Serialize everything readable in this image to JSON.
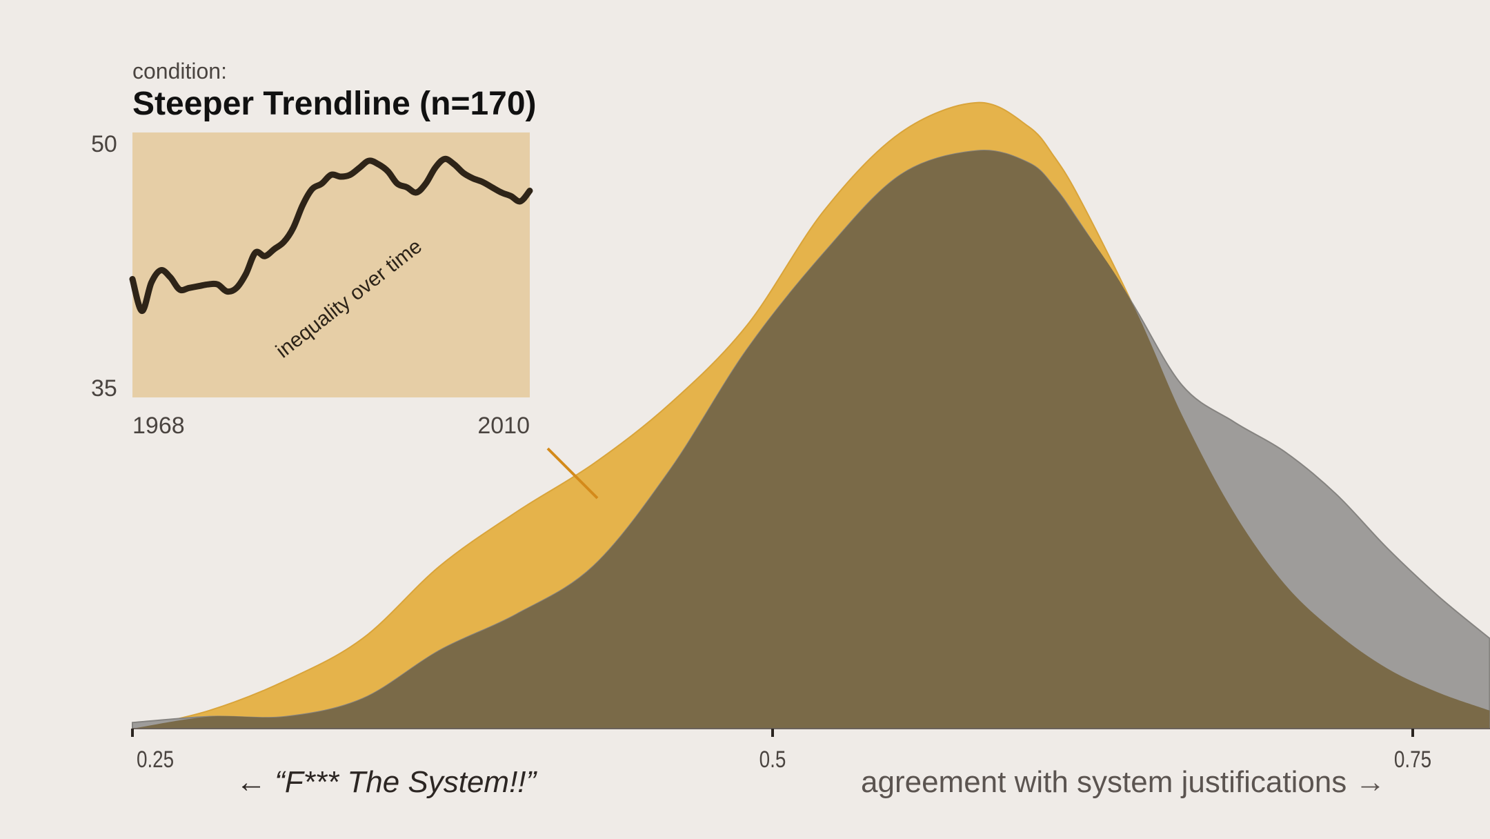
{
  "colors": {
    "background": "#efebe7",
    "condition_fill": "#e5b34b",
    "baseline_fill": "#9e9c9a",
    "overlap_fill": "#7a6a48",
    "inset_background": "#e6cea6",
    "inset_line": "#2e2418",
    "connector": "#d48a1a"
  },
  "header": {
    "condition_label": "condition:",
    "condition_title": "Steeper Trendline (n=170)"
  },
  "inset": {
    "type": "line",
    "annotation": "inequality over time",
    "x_tick_labels": [
      "1968",
      "2010"
    ],
    "y_tick_labels": [
      "50",
      "35"
    ],
    "xlim": [
      1968,
      2010
    ],
    "ylim": [
      35,
      50
    ],
    "x": [
      1968,
      1969,
      1970,
      1971,
      1972,
      1973,
      1974,
      1975,
      1976,
      1977,
      1978,
      1979,
      1980,
      1981,
      1982,
      1983,
      1984,
      1985,
      1986,
      1987,
      1988,
      1989,
      1990,
      1991,
      1992,
      1993,
      1994,
      1995,
      1996,
      1997,
      1998,
      1999,
      2000,
      2001,
      2002,
      2003,
      2004,
      2005,
      2006,
      2007,
      2008,
      2009,
      2010
    ],
    "y": [
      41.7,
      39.9,
      41.5,
      42.2,
      41.8,
      41.1,
      41.2,
      41.3,
      41.4,
      41.4,
      41.0,
      41.2,
      42.0,
      43.2,
      43.0,
      43.4,
      43.8,
      44.6,
      45.9,
      46.8,
      47.1,
      47.6,
      47.5,
      47.6,
      48.0,
      48.4,
      48.2,
      47.8,
      47.1,
      46.9,
      46.6,
      47.1,
      48.0,
      48.5,
      48.2,
      47.7,
      47.4,
      47.2,
      46.9,
      46.6,
      46.4,
      46.1,
      46.7
    ]
  },
  "chart_data": {
    "type": "area",
    "xlabel_left": "← “F*** The System!!”",
    "xlabel_right": "agreement with system justifications →",
    "ylabel": "",
    "x_ticks": [
      0.25,
      0.5,
      0.75
    ],
    "x_tick_labels": [
      "0.25",
      "0.5",
      "0.75"
    ],
    "xlim": [
      0.25,
      0.78
    ],
    "ylim": [
      0,
      1.05
    ],
    "x": [
      0.25,
      0.28,
      0.31,
      0.34,
      0.37,
      0.4,
      0.43,
      0.46,
      0.49,
      0.52,
      0.55,
      0.58,
      0.6,
      0.61,
      0.62,
      0.64,
      0.66,
      0.68,
      0.7,
      0.72,
      0.74,
      0.76,
      0.78
    ],
    "series": [
      {
        "values": [
          0.0,
          0.03,
          0.08,
          0.15,
          0.27,
          0.36,
          0.44,
          0.54,
          0.67,
          0.86,
          0.99,
          1.04,
          1.0,
          0.95,
          0.88,
          0.71,
          0.52,
          0.36,
          0.24,
          0.16,
          0.1,
          0.06,
          0.03
        ]
      },
      {
        "values": [
          0.01,
          0.02,
          0.02,
          0.05,
          0.13,
          0.19,
          0.27,
          0.43,
          0.63,
          0.79,
          0.92,
          0.96,
          0.94,
          0.9,
          0.84,
          0.71,
          0.57,
          0.51,
          0.46,
          0.39,
          0.3,
          0.22,
          0.15
        ]
      }
    ],
    "grid": false,
    "legend": "none"
  }
}
